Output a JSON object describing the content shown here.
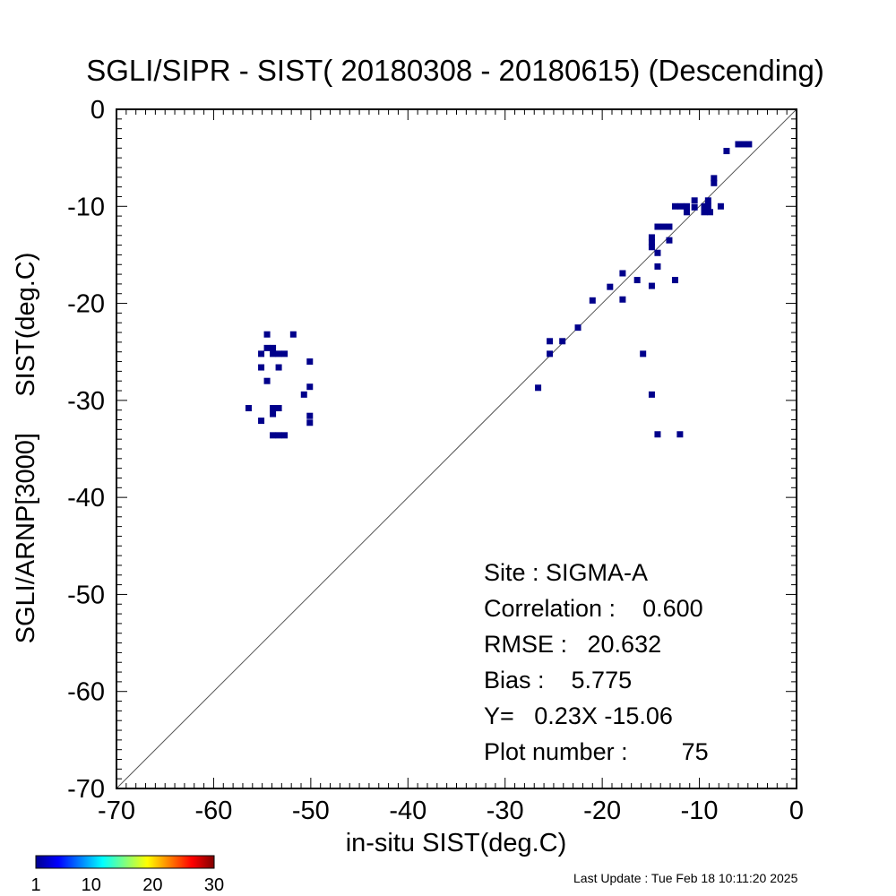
{
  "chart_data": {
    "type": "scatter",
    "title": "SGLI/SIPR - SIST( 20180308 - 20180615) (Descending)",
    "xlabel": "in-situ SIST(deg.C)",
    "ylabel": "SGLI/ARNP[3000]     SIST(deg.C)",
    "xlim": [
      -70,
      0
    ],
    "ylim": [
      -70,
      0
    ],
    "xticks": [
      -70,
      -60,
      -50,
      -40,
      -30,
      -20,
      -10,
      0
    ],
    "yticks": [
      -70,
      -60,
      -50,
      -40,
      -30,
      -20,
      -10,
      0
    ],
    "xtick_labels": [
      "-70",
      "-60",
      "-50",
      "-40",
      "-30",
      "-20",
      "-10",
      "0"
    ],
    "ytick_labels": [
      "-70",
      "-60",
      "-50",
      "-40",
      "-30",
      "-20",
      "-10",
      "0"
    ],
    "reference_line": "y = x",
    "marker_color": "#00008b",
    "points": [
      [
        -54.5,
        -23.2
      ],
      [
        -51.8,
        -23.2
      ],
      [
        -54.5,
        -24.6
      ],
      [
        -53.9,
        -24.6
      ],
      [
        -55.1,
        -25.2
      ],
      [
        -53.9,
        -25.2
      ],
      [
        -53.3,
        -25.2
      ],
      [
        -52.7,
        -25.2
      ],
      [
        -50.1,
        -26.0
      ],
      [
        -55.1,
        -26.6
      ],
      [
        -53.3,
        -26.6
      ],
      [
        -54.5,
        -28.0
      ],
      [
        -50.1,
        -28.6
      ],
      [
        -50.7,
        -29.4
      ],
      [
        -53.9,
        -30.8
      ],
      [
        -53.3,
        -30.8
      ],
      [
        -56.4,
        -30.8
      ],
      [
        -53.9,
        -31.4
      ],
      [
        -50.1,
        -31.6
      ],
      [
        -55.1,
        -32.1
      ],
      [
        -50.1,
        -32.3
      ],
      [
        -53.9,
        -33.6
      ],
      [
        -53.3,
        -33.6
      ],
      [
        -52.7,
        -33.6
      ],
      [
        -26.6,
        -28.7
      ],
      [
        -25.4,
        -25.2
      ],
      [
        -25.4,
        -23.9
      ],
      [
        -24.1,
        -23.9
      ],
      [
        -22.5,
        -22.5
      ],
      [
        -21.0,
        -19.7
      ],
      [
        -19.2,
        -18.3
      ],
      [
        -17.9,
        -16.9
      ],
      [
        -17.9,
        -19.6
      ],
      [
        -16.4,
        -17.6
      ],
      [
        -15.8,
        -25.2
      ],
      [
        -14.9,
        -18.2
      ],
      [
        -14.9,
        -13.2
      ],
      [
        -14.9,
        -13.7
      ],
      [
        -14.9,
        -14.2
      ],
      [
        -14.9,
        -29.4
      ],
      [
        -14.3,
        -12.1
      ],
      [
        -13.7,
        -12.1
      ],
      [
        -13.1,
        -12.1
      ],
      [
        -14.3,
        -14.8
      ],
      [
        -14.3,
        -16.2
      ],
      [
        -13.1,
        -13.5
      ],
      [
        -14.3,
        -33.5
      ],
      [
        -12.5,
        -17.6
      ],
      [
        -12.5,
        -10.0
      ],
      [
        -11.9,
        -10.0
      ],
      [
        -11.3,
        -10.0
      ],
      [
        -11.3,
        -10.6
      ],
      [
        -12.0,
        -33.5
      ],
      [
        -10.5,
        -9.4
      ],
      [
        -10.5,
        -10.1
      ],
      [
        -9.5,
        -10.6
      ],
      [
        -8.9,
        -10.6
      ],
      [
        -9.5,
        -10.0
      ],
      [
        -9.1,
        -9.4
      ],
      [
        -9.1,
        -10.0
      ],
      [
        -8.5,
        -7.1
      ],
      [
        -8.5,
        -7.6
      ],
      [
        -7.8,
        -10.0
      ],
      [
        -7.2,
        -4.3
      ],
      [
        -6.0,
        -3.6
      ],
      [
        -5.4,
        -3.6
      ],
      [
        -4.9,
        -3.6
      ]
    ],
    "colorbar": {
      "min": 1,
      "max": 30,
      "tick_values": [
        1,
        10,
        20,
        30
      ],
      "tick_labels": [
        "1",
        "10",
        "20",
        "30"
      ]
    }
  },
  "stats": {
    "site": "Site : SIGMA-A",
    "correlation": "Correlation :    0.600",
    "rmse": "RMSE :   20.632",
    "bias": "Bias :    5.775",
    "regression": "Y=   0.23X -15.06",
    "plot_number": "Plot number :        75"
  },
  "footer": {
    "last_update": "Last Update : Tue Feb 18 10:11:20 2025"
  }
}
